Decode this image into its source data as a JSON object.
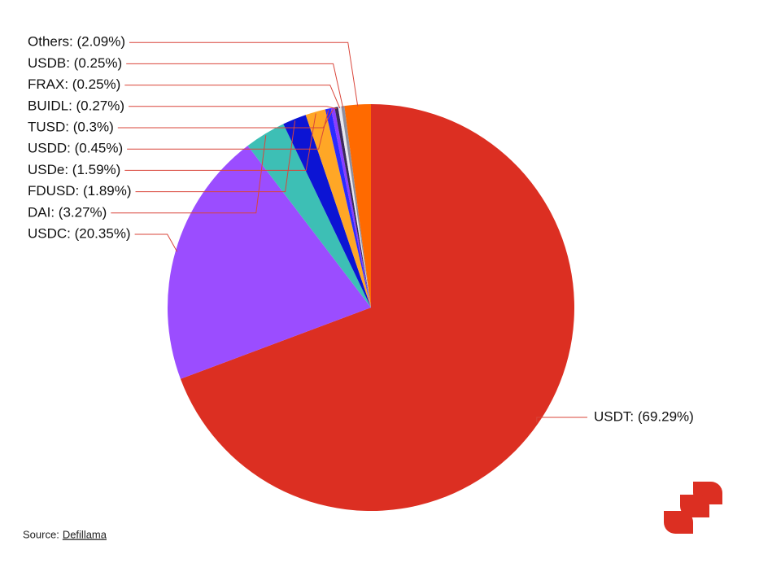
{
  "chart_data": {
    "type": "pie",
    "values": [
      69.29,
      20.35,
      3.27,
      1.89,
      1.59,
      0.45,
      0.3,
      0.27,
      0.25,
      0.25,
      2.09
    ],
    "value_labels": [
      "USDT: (69.29%)",
      "USDC: (20.35%)",
      "DAI: (3.27%)",
      "FDUSD: (1.89%)",
      "USDe: (1.59%)",
      "USDD: (0.45%)",
      "TUSD: (0.3%)",
      "BUIDL: (0.27%)",
      "FRAX: (0.25%)",
      "USDB: (0.25%)",
      "Others: (2.09%)"
    ],
    "colors": [
      "#dc2f22",
      "#9b4dff",
      "#3dbfb5",
      "#0c14d4",
      "#ffa726",
      "#2b2bff",
      "#8a3dff",
      "#3a2a5a",
      "#e8e8f0",
      "#8e8e9e",
      "#ff6a00"
    ],
    "leader_color": "#d9453a"
  },
  "source": {
    "prefix": "Source:",
    "link": "Defillama"
  }
}
